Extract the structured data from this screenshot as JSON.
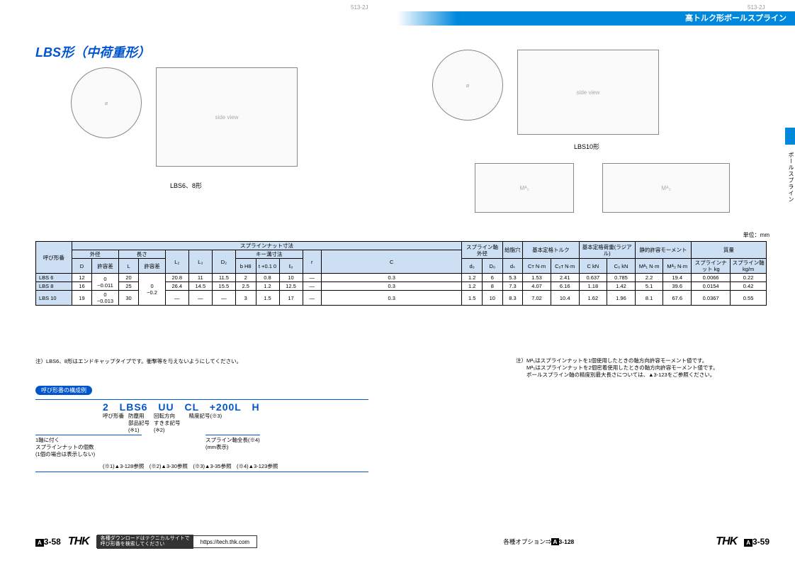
{
  "header_code_left": "513-2J",
  "header_code_right": "513-2J",
  "banner_title": "高トルク形ボールスプライン",
  "side_tab_label": "ボールスプライン",
  "page_title": "LBS形（中荷重形）",
  "diagram_caption_left": "LBS6、8形",
  "diagram_caption_right": "LBS10形",
  "unit_label": "単位：mm",
  "table": {
    "group_headers": {
      "nut_dim": "スプラインナット寸法",
      "outer_dia": "外径",
      "length": "長さ",
      "key_dim": "キー溝寸法",
      "shaft_outer": "スプライン軸外径",
      "oil_hole": "給脂穴",
      "rated_torque": "基本定格トルク",
      "rated_load": "基本定格荷重(ラジアル)",
      "static_moment": "静的許容モーメント",
      "mass": "質量"
    },
    "col_headers": [
      "呼び形番",
      "D",
      "許容差",
      "L",
      "許容差",
      "L₂",
      "L₃",
      "D₂",
      "b H8",
      "t +0.1 0",
      "ℓ₀",
      "r",
      "C",
      "d₀",
      "D₀",
      "dₛ",
      "Cᴛ N·m",
      "C₀ᴛ N·m",
      "C kN",
      "C₀ kN",
      "Mᴬ₁ N·m",
      "Mᴬ₂ N·m",
      "スプラインナット kg",
      "スプライン軸 kg/m"
    ],
    "rows": [
      {
        "name": "LBS 6",
        "D": "12",
        "Dtol": "0\n−0.011",
        "L": "20",
        "Ltol": "0\n−0.2",
        "L2": "20.8",
        "L3": "11",
        "D2": "11.5",
        "b": "2",
        "t": "0.8",
        "l0": "10",
        "r": "—",
        "C": "0.3",
        "d0": "1.2",
        "D0": "6",
        "ds": "5.3",
        "CT": "1.53",
        "C0T": "2.41",
        "Ck": "0.637",
        "C0k": "0.785",
        "MA1": "2.2",
        "MA2": "19.4",
        "mnut": "0.0066",
        "mshaft": "0.22"
      },
      {
        "name": "LBS 8",
        "D": "16",
        "Dtol": "",
        "L": "25",
        "Ltol": "",
        "L2": "26.4",
        "L3": "14.5",
        "D2": "15.5",
        "b": "2.5",
        "t": "1.2",
        "l0": "12.5",
        "r": "—",
        "C": "0.3",
        "d0": "1.2",
        "D0": "8",
        "ds": "7.3",
        "CT": "4.07",
        "C0T": "6.16",
        "Ck": "1.18",
        "C0k": "1.42",
        "MA1": "5.1",
        "MA2": "39.6",
        "mnut": "0.0154",
        "mshaft": "0.42"
      },
      {
        "name": "LBS 10",
        "D": "19",
        "Dtol": "0\n−0.013",
        "L": "30",
        "Ltol": "",
        "L2": "—",
        "L3": "—",
        "D2": "—",
        "b": "3",
        "t": "1.5",
        "l0": "17",
        "r": "—",
        "C": "0.3",
        "d0": "1.5",
        "D0": "10",
        "ds": "8.3",
        "CT": "7.02",
        "C0T": "10.4",
        "Ck": "1.62",
        "C0k": "1.96",
        "MA1": "8.1",
        "MA2": "67.6",
        "mnut": "0.0367",
        "mshaft": "0.55"
      }
    ]
  },
  "note_left": "注）LBS6、8形はエンドキャップタイプです。衝撃等を与えないようにしてください。",
  "note_right": "注）Mᴬ₁はスプラインナットを1個使用したときの軸方向許容モーメント値です。\n　　Mᴬ₂はスプラインナットを2個密着使用したときの軸方向許容モーメント値です。\n　　ボールスプライン軸の精度別最大長さについては、▲3-123をご参照ください。",
  "config": {
    "header": "呼び形番の構成例",
    "code": "2 LBS6 UU CL +200L H",
    "labels": {
      "c1": "呼び形番",
      "c2": "防塵用\n部品記号\n(※1)",
      "c3": "回転方向\nすきま記号\n(※2)",
      "c4": "精度記号(※3)"
    },
    "label_left": "1軸に付く\nスプラインナットの個数\n(1個の場合は表示しない)",
    "label_right": "スプライン軸全長(※4)\n(mm表示)",
    "refs": "(※1)▲3-128参照　(※2)▲3-30参照　(※3)▲3-35参照　(※4)▲3-123参照"
  },
  "footer": {
    "page_left": "3-58",
    "page_right": "3-59",
    "logo": "THK",
    "tech_text": "各種ダウンロードはテクニカルサイトで\n呼び形番を検索してください",
    "tech_url": "https://tech.thk.com",
    "options": "各種オプション⇒",
    "options_page": "3-128"
  },
  "colors": {
    "brand_blue": "#0055cc",
    "banner_blue": "#0088dd",
    "table_header_bg": "#cddff3"
  }
}
